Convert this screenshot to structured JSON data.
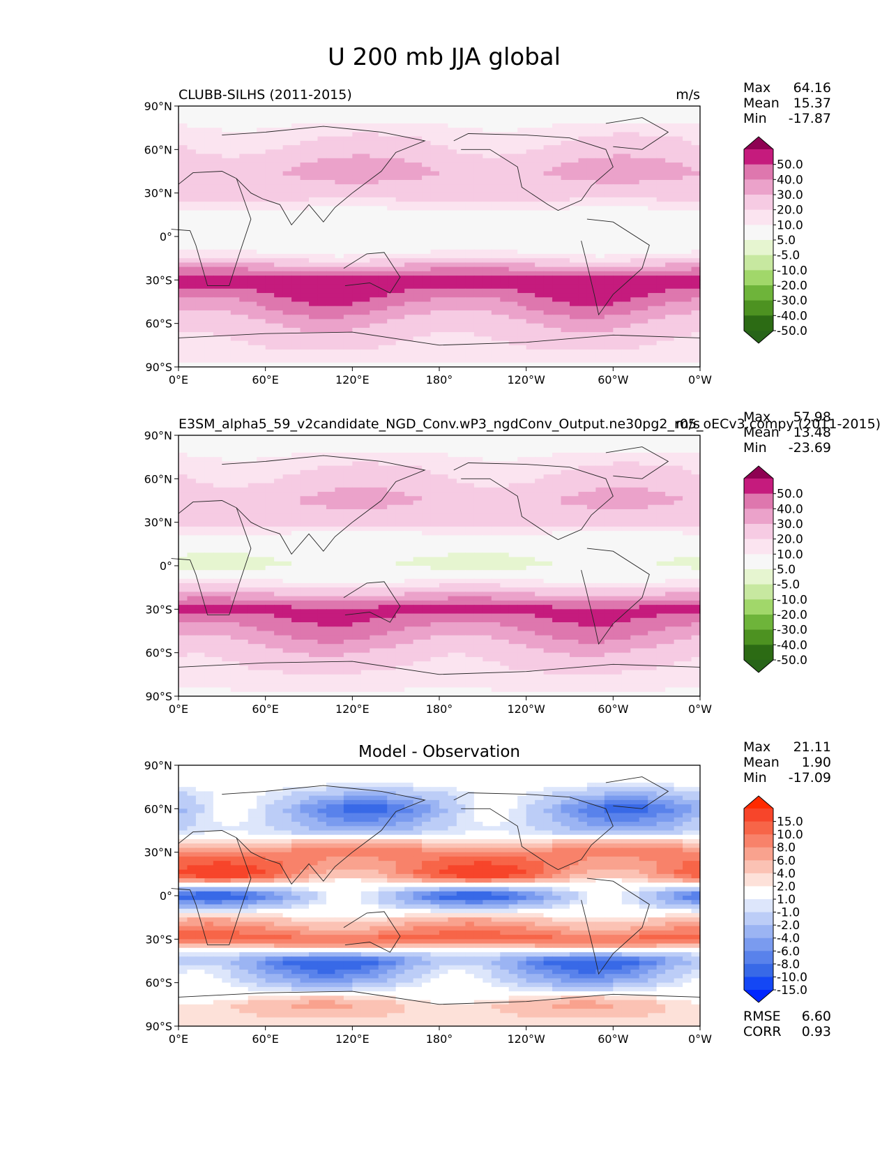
{
  "figure": {
    "title": "U 200 mb JJA global"
  },
  "chart_data": [
    {
      "type": "heatmap",
      "panel": "test",
      "title_left": "CLUBB-SILHS (2011-2015)",
      "title_center": "",
      "title_right": "m/s",
      "x_ticks": [
        "0°E",
        "60°E",
        "120°E",
        "180°",
        "120°W",
        "60°W",
        "0°W"
      ],
      "y_ticks": [
        "90°N",
        "60°N",
        "30°N",
        "0°",
        "30°S",
        "60°S",
        "90°S"
      ],
      "stats": [
        {
          "label": "Max",
          "value": "64.16"
        },
        {
          "label": "Mean",
          "value": "15.37"
        },
        {
          "label": "Min",
          "value": "-17.87"
        }
      ],
      "colorbar": {
        "labels": [
          "50.0",
          "40.0",
          "30.0",
          "20.0",
          "10.0",
          "5.0",
          "-5.0",
          "-10.0",
          "-20.0",
          "-30.0",
          "-40.0",
          "-50.0"
        ],
        "colors": [
          "#8e0152",
          "#c51b7d",
          "#de77ae",
          "#eba2ca",
          "#f6cbe3",
          "#fbe4f0",
          "#f7f7f7",
          "#e6f5d0",
          "#c7e8a0",
          "#a1d76a",
          "#6eb43a",
          "#4d9221",
          "#2c6b14",
          "#276419"
        ],
        "cap_top": "#8e0152",
        "cap_bottom": "#276419"
      },
      "field_approx": {
        "zonal_mean_profile": [
          {
            "lat": 90,
            "u": 0
          },
          {
            "lat": 75,
            "u": 6
          },
          {
            "lat": 60,
            "u": 12
          },
          {
            "lat": 45,
            "u": 22
          },
          {
            "lat": 30,
            "u": 14
          },
          {
            "lat": 15,
            "u": 2
          },
          {
            "lat": 0,
            "u": -4
          },
          {
            "lat": -15,
            "u": 8
          },
          {
            "lat": -30,
            "u": 48
          },
          {
            "lat": -45,
            "u": 34
          },
          {
            "lat": -60,
            "u": 18
          },
          {
            "lat": -75,
            "u": 10
          },
          {
            "lat": -90,
            "u": 4
          }
        ]
      },
      "rmse": null,
      "corr": null
    },
    {
      "type": "heatmap",
      "panel": "reference",
      "title_left": "E3SM_alpha5_59_v2candidate_NGD_Conv.wP3_ngdConv_Output.ne30pg2_r05_oECv3.compy (2011-2015)",
      "title_center": "",
      "title_right": "m/s",
      "x_ticks": [
        "0°E",
        "60°E",
        "120°E",
        "180°",
        "120°W",
        "60°W",
        "0°W"
      ],
      "y_ticks": [
        "90°N",
        "60°N",
        "30°N",
        "0°",
        "30°S",
        "60°S",
        "90°S"
      ],
      "stats": [
        {
          "label": "Max",
          "value": "57.98"
        },
        {
          "label": "Mean",
          "value": "13.48"
        },
        {
          "label": "Min",
          "value": "-23.69"
        }
      ],
      "colorbar": {
        "labels": [
          "50.0",
          "40.0",
          "30.0",
          "20.0",
          "10.0",
          "5.0",
          "-5.0",
          "-10.0",
          "-20.0",
          "-30.0",
          "-40.0",
          "-50.0"
        ],
        "colors": [
          "#8e0152",
          "#c51b7d",
          "#de77ae",
          "#eba2ca",
          "#f6cbe3",
          "#fbe4f0",
          "#f7f7f7",
          "#e6f5d0",
          "#c7e8a0",
          "#a1d76a",
          "#6eb43a",
          "#4d9221",
          "#2c6b14",
          "#276419"
        ],
        "cap_top": "#8e0152",
        "cap_bottom": "#276419"
      },
      "field_approx": {
        "zonal_mean_profile": [
          {
            "lat": 90,
            "u": 0
          },
          {
            "lat": 75,
            "u": 6
          },
          {
            "lat": 60,
            "u": 12
          },
          {
            "lat": 45,
            "u": 20
          },
          {
            "lat": 30,
            "u": 12
          },
          {
            "lat": 15,
            "u": -2
          },
          {
            "lat": 0,
            "u": -6
          },
          {
            "lat": -15,
            "u": 10
          },
          {
            "lat": -30,
            "u": 44
          },
          {
            "lat": -45,
            "u": 30
          },
          {
            "lat": -60,
            "u": 16
          },
          {
            "lat": -75,
            "u": 8
          },
          {
            "lat": -90,
            "u": 4
          }
        ]
      },
      "rmse": null,
      "corr": null
    },
    {
      "type": "heatmap",
      "panel": "difference",
      "title_left": "",
      "title_center": "Model - Observation",
      "title_right": "",
      "x_ticks": [
        "0°E",
        "60°E",
        "120°E",
        "180°",
        "120°W",
        "60°W",
        "0°W"
      ],
      "y_ticks": [
        "90°N",
        "60°N",
        "30°N",
        "0°",
        "30°S",
        "60°S",
        "90°S"
      ],
      "stats": [
        {
          "label": "Max",
          "value": "21.11"
        },
        {
          "label": "Mean",
          "value": "1.90"
        },
        {
          "label": "Min",
          "value": "-17.09"
        }
      ],
      "colorbar": {
        "labels": [
          "15.0",
          "10.0",
          "8.0",
          "6.0",
          "4.0",
          "2.0",
          "1.0",
          "-1.0",
          "-2.0",
          "-4.0",
          "-6.0",
          "-8.0",
          "-10.0",
          "-15.0"
        ],
        "colors": [
          "#ff2a00",
          "#f7452a",
          "#f76548",
          "#f8826a",
          "#f9a28e",
          "#fbc2b4",
          "#fde1d9",
          "#ffffff",
          "#dde6fb",
          "#bccdf7",
          "#9bb4f3",
          "#7a9bef",
          "#5982eb",
          "#3869e7",
          "#1447f5",
          "#0026ff"
        ],
        "cap_top": "#ff2a00",
        "cap_bottom": "#0026ff"
      },
      "field_approx": {
        "zonal_mean_profile": [
          {
            "lat": 90,
            "u": 1
          },
          {
            "lat": 75,
            "u": -1
          },
          {
            "lat": 60,
            "u": -6
          },
          {
            "lat": 45,
            "u": -3
          },
          {
            "lat": 30,
            "u": 7
          },
          {
            "lat": 15,
            "u": 8
          },
          {
            "lat": 0,
            "u": -7
          },
          {
            "lat": -15,
            "u": 2
          },
          {
            "lat": -30,
            "u": 9
          },
          {
            "lat": -45,
            "u": -8
          },
          {
            "lat": -60,
            "u": -3
          },
          {
            "lat": -75,
            "u": 3
          },
          {
            "lat": -90,
            "u": 1
          }
        ]
      },
      "rmse": {
        "label": "RMSE",
        "value": "6.60"
      },
      "corr": {
        "label": "CORR",
        "value": "0.93"
      }
    }
  ]
}
